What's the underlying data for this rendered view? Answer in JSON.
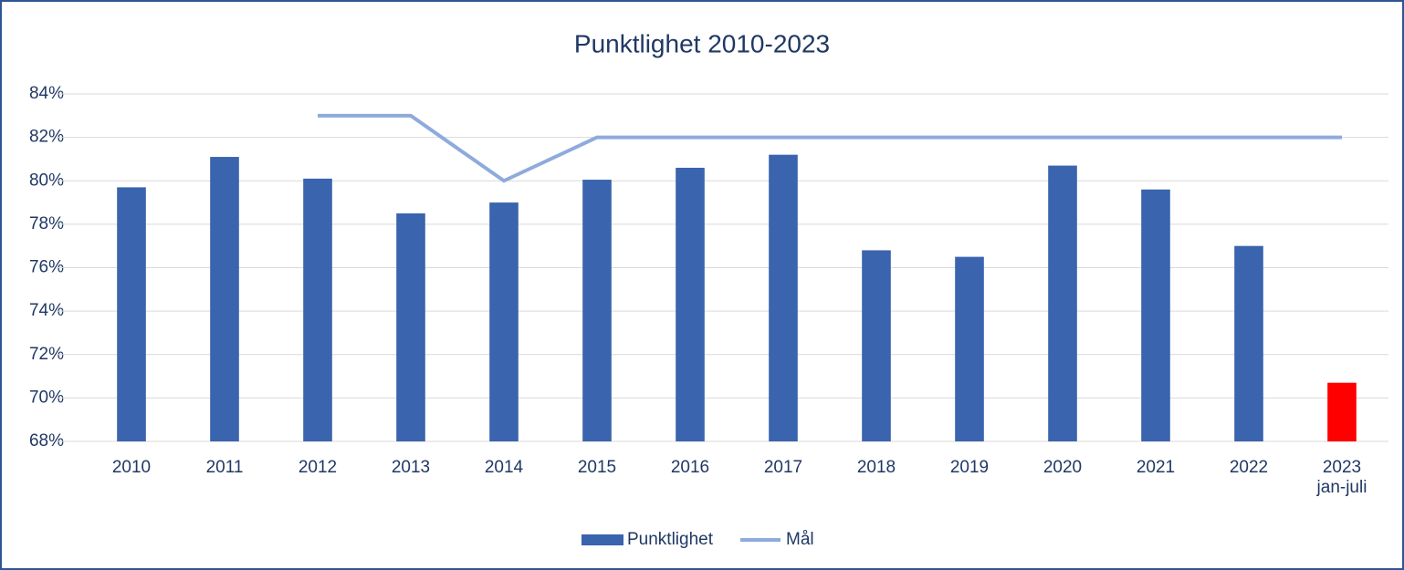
{
  "chart_data": {
    "type": "bar",
    "title": "Punktlighet 2010-2023",
    "categories": [
      "2010",
      "2011",
      "2012",
      "2013",
      "2014",
      "2015",
      "2016",
      "2017",
      "2018",
      "2019",
      "2020",
      "2021",
      "2022",
      "2023\njan-juli"
    ],
    "series": [
      {
        "name": "Punktlighet",
        "type": "bar",
        "color": "#3a64ad",
        "colors": [
          "#3a64ad",
          "#3a64ad",
          "#3a64ad",
          "#3a64ad",
          "#3a64ad",
          "#3a64ad",
          "#3a64ad",
          "#3a64ad",
          "#3a64ad",
          "#3a64ad",
          "#3a64ad",
          "#3a64ad",
          "#3a64ad",
          "#ff0000"
        ],
        "values": [
          79.7,
          81.1,
          80.1,
          78.5,
          79.0,
          80.05,
          80.6,
          81.2,
          76.8,
          76.5,
          80.7,
          79.6,
          77.0,
          70.7
        ]
      },
      {
        "name": "Mål",
        "type": "line",
        "color": "#8faadc",
        "values": [
          null,
          null,
          83,
          83,
          80,
          82,
          82,
          82,
          82,
          82,
          82,
          82,
          82,
          82
        ]
      }
    ],
    "ylim": [
      68,
      84
    ],
    "yticks": [
      {
        "value": 68,
        "label": "68%"
      },
      {
        "value": 70,
        "label": "70%"
      },
      {
        "value": 72,
        "label": "72%"
      },
      {
        "value": 74,
        "label": "74%"
      },
      {
        "value": 76,
        "label": "76%"
      },
      {
        "value": 78,
        "label": "78%"
      },
      {
        "value": 80,
        "label": "80%"
      },
      {
        "value": 82,
        "label": "82%"
      },
      {
        "value": 84,
        "label": "84%"
      }
    ],
    "grid": true,
    "legend": "bottom"
  }
}
